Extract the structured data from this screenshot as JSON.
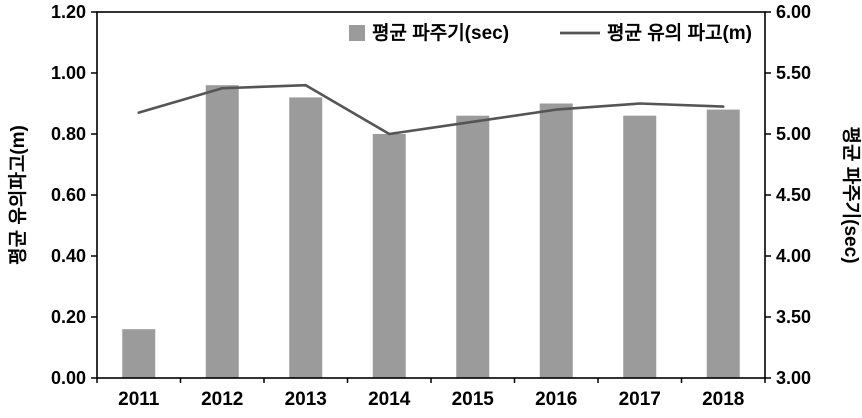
{
  "chart_data": {
    "type": "bar",
    "subtype": "bar+line combo",
    "categories": [
      "2011",
      "2012",
      "2013",
      "2014",
      "2015",
      "2016",
      "2017",
      "2018"
    ],
    "series": [
      {
        "name": "평균 파주기(sec)",
        "type": "bar",
        "axis": "right",
        "color": "#9b9b9b",
        "values": [
          3.4,
          5.4,
          5.3,
          5.0,
          5.15,
          5.25,
          5.15,
          5.2
        ]
      },
      {
        "name": "평균 유의 파고(m)",
        "type": "line",
        "axis": "left",
        "color": "#555555",
        "values": [
          0.87,
          0.95,
          0.96,
          0.8,
          0.84,
          0.88,
          0.9,
          0.89
        ]
      }
    ],
    "left_axis": {
      "label": "평균 유의파고(m)",
      "min": 0.0,
      "max": 1.2,
      "step": 0.2,
      "tick_labels": [
        "0.00",
        "0.20",
        "0.40",
        "0.60",
        "0.80",
        "1.00",
        "1.20"
      ]
    },
    "right_axis": {
      "label": "평균 파주기(sec)",
      "min": 3.0,
      "max": 6.0,
      "step": 0.5,
      "tick_labels": [
        "3.00",
        "3.50",
        "4.00",
        "4.50",
        "5.00",
        "5.50",
        "6.00"
      ]
    },
    "legend": {
      "position": "top-inside",
      "entries": [
        {
          "label": "평균 파주기(sec)",
          "swatch": "bar-swatch",
          "color": "#9b9b9b"
        },
        {
          "label": "평균 유의 파고(m)",
          "swatch": "line-swatch",
          "color": "#555555"
        }
      ]
    },
    "grid": false,
    "plot_border_color": "#000000",
    "background_color": "#ffffff"
  }
}
